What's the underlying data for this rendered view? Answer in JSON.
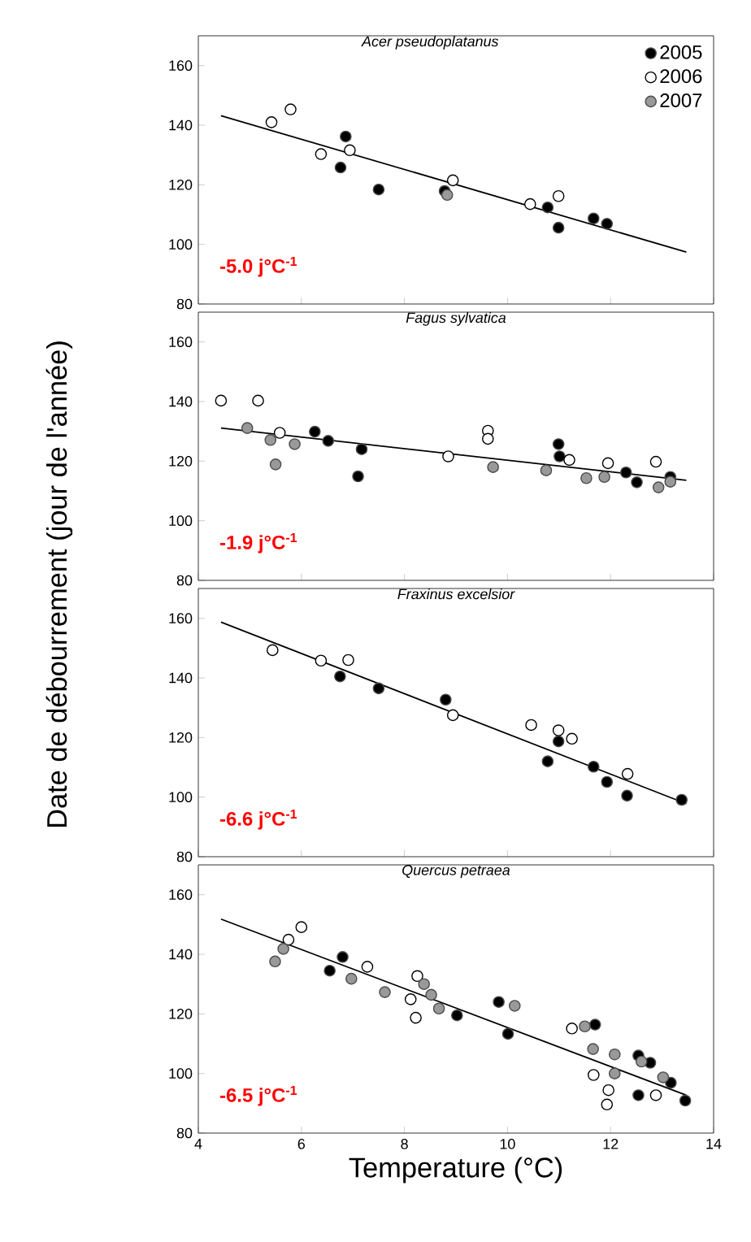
{
  "chart_data": [
    {
      "type": "scatter",
      "title": "Acer pseudoplatanus",
      "ylabel": "Date de débourrement (jour de l'année)",
      "xlim": [
        4,
        14
      ],
      "ylim": [
        80,
        170
      ],
      "xticks": [
        4,
        6,
        8,
        10,
        12,
        14
      ],
      "yticks": [
        80,
        100,
        120,
        140,
        160
      ],
      "tick_labels": "y",
      "marker": "circle",
      "legend": "top right",
      "annotations": [
        "-5.0 j°C$^{-1}$"
      ],
      "series": [
        {
          "name": "2005",
          "color": "#000000",
          "x": [
            6.86,
            6.76,
            7.5,
            8.78,
            10.78,
            10.99,
            11.67,
            11.93
          ],
          "values": [
            136.2,
            125.8,
            118.4,
            117.9,
            112.4,
            105.6,
            108.7,
            106.9
          ]
        },
        {
          "name": "2006",
          "color": "#ffffff",
          "x": [
            5.42,
            5.79,
            6.38,
            6.94,
            8.94,
            10.44,
            10.99
          ],
          "values": [
            141,
            145.3,
            130.3,
            131.6,
            121.5,
            113.5,
            116.2
          ]
        },
        {
          "name": "2007",
          "color": "#999999",
          "x": [
            8.83
          ],
          "values": [
            116.6
          ]
        },
        {
          "type": "line",
          "marker": "none",
          "color": "#000000",
          "x": [
            4.44,
            13.47
          ],
          "values": [
            143.2,
            97.4
          ]
        }
      ]
    },
    {
      "type": "scatter",
      "title": "Fagus sylvatica",
      "xlim": [
        4,
        14
      ],
      "ylim": [
        80,
        170
      ],
      "xticks": [
        4,
        6,
        8,
        10,
        12,
        14
      ],
      "yticks": [
        80,
        100,
        120,
        140,
        160
      ],
      "tick_labels": "y",
      "marker": "circle",
      "annotations": [
        "-1.9 j°C$^{-1}$"
      ],
      "series": [
        {
          "color": "#000000",
          "x": [
            6.26,
            6.52,
            7.17,
            7.1,
            10.99,
            11.01,
            12.3,
            12.51,
            13.16
          ],
          "values": [
            129.9,
            126.8,
            124,
            114.9,
            125.7,
            121.6,
            116.2,
            112.9,
            114.7
          ]
        },
        {
          "color": "#ffffff",
          "x": [
            4.44,
            5.16,
            5.58,
            8.85,
            9.62,
            9.62,
            11.2,
            11.95,
            12.88
          ],
          "values": [
            140.3,
            140.3,
            129.5,
            121.6,
            130.2,
            127.5,
            120.4,
            119.3,
            119.8
          ]
        },
        {
          "color": "#999999",
          "x": [
            4.95,
            5.4,
            5.5,
            5.87,
            9.72,
            10.75,
            11.53,
            11.88,
            12.93,
            13.16
          ],
          "values": [
            131.1,
            127.1,
            118.9,
            125.7,
            118,
            116.9,
            114.3,
            114.7,
            111.2,
            113.1
          ]
        },
        {
          "type": "line",
          "marker": "none",
          "color": "#000000",
          "x": [
            4.44,
            13.47
          ],
          "values": [
            131.1,
            113.6
          ]
        }
      ]
    },
    {
      "type": "scatter",
      "title": "Fraxinus excelsior",
      "xlim": [
        4,
        14
      ],
      "ylim": [
        80,
        170
      ],
      "xticks": [
        4,
        6,
        8,
        10,
        12,
        14
      ],
      "yticks": [
        80,
        100,
        120,
        140,
        160
      ],
      "tick_labels": "y",
      "marker": "circle",
      "annotations": [
        "-6.6 j°C$^{-1}$"
      ],
      "series": [
        {
          "color": "#000000",
          "x": [
            6.75,
            7.5,
            8.8,
            10.99,
            10.78,
            11.67,
            11.93,
            12.32,
            13.38
          ],
          "values": [
            140.5,
            136.5,
            132.7,
            118.7,
            112,
            110.2,
            105.1,
            100.5,
            99.1
          ]
        },
        {
          "color": "#ffffff",
          "x": [
            5.44,
            6.38,
            6.91,
            8.94,
            10.46,
            10.99,
            11.25,
            12.33
          ],
          "values": [
            149.3,
            145.8,
            146,
            127.5,
            124.2,
            122.4,
            119.6,
            107.8
          ]
        },
        {
          "type": "line",
          "marker": "none",
          "color": "#000000",
          "x": [
            4.44,
            13.47
          ],
          "values": [
            158.7,
            97.8
          ]
        }
      ]
    },
    {
      "type": "scatter",
      "title": "Quercus petraea",
      "xlabel": "Temperature (°C)",
      "xlim": [
        4,
        14
      ],
      "ylim": [
        80,
        170
      ],
      "xticks": [
        4,
        6,
        8,
        10,
        12,
        14
      ],
      "yticks": [
        80,
        100,
        120,
        140,
        160
      ],
      "marker": "circle",
      "annotations": [
        "-6.5 j°C$^{-1}$"
      ],
      "series": [
        {
          "color": "#000000",
          "x": [
            6.8,
            6.55,
            9.02,
            9.83,
            10.01,
            11.7,
            12.54,
            12.77,
            12.54,
            13.17,
            13.45
          ],
          "values": [
            139.1,
            134.5,
            119.5,
            124,
            113.3,
            116.4,
            106,
            103.6,
            92.7,
            96.9,
            90.9
          ]
        },
        {
          "color": "#ffffff",
          "x": [
            6.0,
            5.75,
            7.28,
            8.25,
            8.12,
            8.22,
            11.25,
            11.67,
            11.96,
            11.93,
            12.88
          ],
          "values": [
            149.1,
            144.9,
            135.8,
            132.7,
            124.9,
            118.7,
            115.1,
            99.5,
            94.4,
            89.6,
            92.7
          ]
        },
        {
          "color": "#999999",
          "x": [
            5.49,
            5.65,
            6.97,
            7.62,
            8.38,
            8.52,
            8.67,
            10.14,
            11.5,
            11.66,
            12.08,
            12.08,
            12.6,
            13.02
          ],
          "values": [
            137.6,
            141.8,
            131.8,
            127.3,
            130,
            126.4,
            121.8,
            122.7,
            115.8,
            108.2,
            106.4,
            100,
            104,
            98.7
          ]
        },
        {
          "type": "line",
          "marker": "none",
          "color": "#000000",
          "x": [
            4.44,
            13.47
          ],
          "values": [
            151.8,
            92.7
          ]
        }
      ]
    }
  ]
}
